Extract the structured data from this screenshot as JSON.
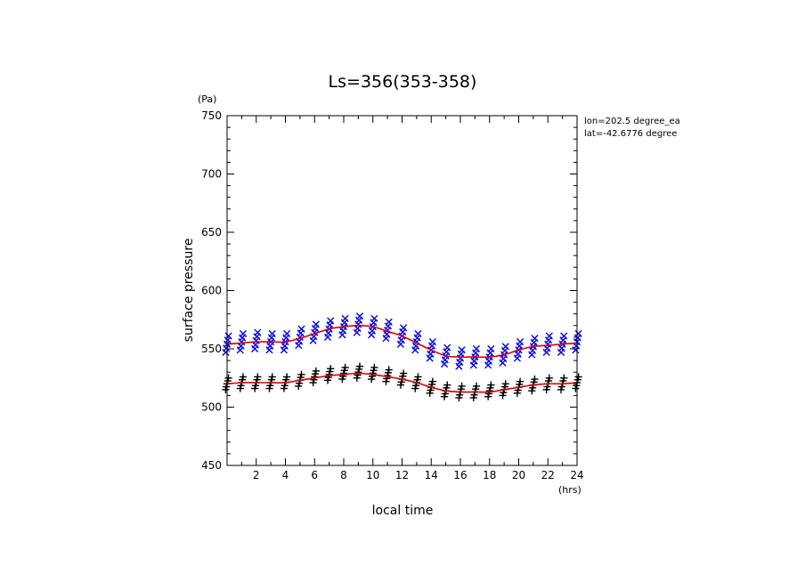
{
  "chart_data": {
    "type": "scatter",
    "title": "Ls=356(353-358)",
    "xlabel": "local time",
    "ylabel": "surface pressure",
    "x_unit": "(hrs)",
    "y_unit": "(Pa)",
    "xlim": [
      0,
      24
    ],
    "ylim": [
      450,
      750
    ],
    "x_ticks": [
      2,
      4,
      6,
      8,
      10,
      12,
      14,
      16,
      18,
      20,
      22,
      24
    ],
    "y_ticks": [
      450,
      500,
      550,
      600,
      650,
      700,
      750
    ],
    "grid": false,
    "annotations": [
      "lon=202.5 degree_ea",
      "lat=-42.6776 degree"
    ],
    "series": [
      {
        "marker": "x",
        "color": "#0000ee",
        "x": [
          0,
          1,
          2,
          3,
          4,
          5,
          6,
          7,
          8,
          9,
          10,
          11,
          12,
          13,
          14,
          15,
          16,
          17,
          18,
          19,
          20,
          21,
          22,
          23,
          24
        ],
        "y": [
          554,
          556,
          557,
          556,
          556,
          560,
          564,
          567,
          569,
          571,
          569,
          566,
          561,
          556,
          549,
          544,
          542,
          543,
          543,
          545,
          549,
          552,
          554,
          554,
          556
        ],
        "spread": 7
      },
      {
        "marker": "+",
        "color": "#000000",
        "x": [
          0,
          1,
          2,
          3,
          4,
          5,
          6,
          7,
          8,
          9,
          10,
          11,
          12,
          13,
          14,
          15,
          16,
          17,
          18,
          19,
          20,
          21,
          22,
          23,
          24
        ],
        "y": [
          520,
          521,
          521,
          521,
          521,
          523,
          526,
          528,
          529,
          530,
          529,
          527,
          524,
          521,
          517,
          514,
          513,
          513,
          514,
          515,
          517,
          519,
          520,
          520,
          521
        ],
        "spread": 5
      },
      {
        "marker": "line",
        "color": "#dd0000",
        "x": [
          0,
          1,
          2,
          3,
          4,
          5,
          6,
          7,
          8,
          9,
          10,
          11,
          12,
          13,
          14,
          15,
          16,
          17,
          18,
          19,
          20,
          21,
          22,
          23,
          24
        ],
        "y": [
          554,
          555,
          556,
          556,
          556,
          559,
          563,
          567,
          569,
          570,
          569,
          565,
          561,
          555,
          549,
          544,
          543,
          543,
          543,
          545,
          549,
          552,
          553,
          554,
          555
        ]
      },
      {
        "marker": "line",
        "color": "#dd0000",
        "x": [
          0,
          1,
          2,
          3,
          4,
          5,
          6,
          7,
          8,
          9,
          10,
          11,
          12,
          13,
          14,
          15,
          16,
          17,
          18,
          19,
          20,
          21,
          22,
          23,
          24
        ],
        "y": [
          520,
          521,
          521,
          521,
          521,
          523,
          525,
          527,
          528,
          529,
          528,
          526,
          524,
          521,
          517,
          514,
          513,
          513,
          513,
          515,
          517,
          519,
          520,
          520,
          521
        ]
      }
    ]
  }
}
